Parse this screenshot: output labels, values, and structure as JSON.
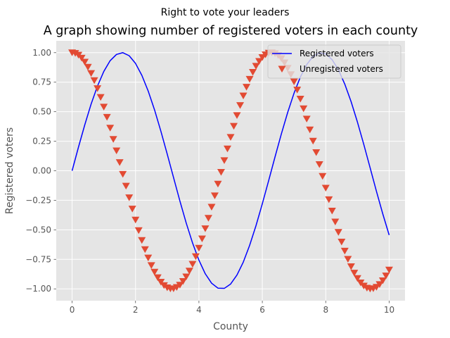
{
  "chart_data": {
    "type": "line",
    "suptitle": "Right to vote your leaders",
    "title": "A graph showing number of registered voters in each county",
    "xlabel": "County",
    "ylabel": "Registered voters",
    "xlim": [
      -0.5,
      10.5
    ],
    "ylim": [
      -1.1,
      1.1
    ],
    "xticks": [
      0,
      2,
      4,
      6,
      8,
      10
    ],
    "xtick_labels": [
      "0",
      "2",
      "4",
      "6",
      "8",
      "10"
    ],
    "yticks": [
      -1.0,
      -0.75,
      -0.5,
      -0.25,
      0.0,
      0.25,
      0.5,
      0.75,
      1.0
    ],
    "ytick_labels": [
      "−1.00",
      "−0.75",
      "−0.50",
      "−0.25",
      "0.00",
      "0.25",
      "0.50",
      "0.75",
      "1.00"
    ],
    "grid": true,
    "legend_position": "top-right",
    "series": [
      {
        "name": "Registered voters",
        "kind": "line",
        "color": "#0000ff",
        "x": [
          0.0,
          0.2,
          0.4,
          0.6,
          0.8,
          1.0,
          1.2,
          1.4,
          1.6,
          1.8,
          2.0,
          2.2,
          2.4,
          2.6,
          2.8,
          3.0,
          3.2,
          3.4,
          3.6,
          3.8,
          4.0,
          4.2,
          4.4,
          4.6,
          4.8,
          5.0,
          5.2,
          5.4,
          5.6,
          5.8,
          6.0,
          6.2,
          6.4,
          6.6,
          6.8,
          7.0,
          7.2,
          7.4,
          7.6,
          7.8,
          8.0,
          8.2,
          8.4,
          8.6,
          8.8,
          9.0,
          9.2,
          9.4,
          9.6,
          9.8,
          10.0
        ],
        "y": [
          0.0,
          0.199,
          0.389,
          0.565,
          0.717,
          0.841,
          0.932,
          0.985,
          1.0,
          0.974,
          0.909,
          0.808,
          0.675,
          0.516,
          0.335,
          0.141,
          -0.058,
          -0.256,
          -0.443,
          -0.612,
          -0.757,
          -0.872,
          -0.952,
          -0.994,
          -0.996,
          -0.959,
          -0.883,
          -0.773,
          -0.631,
          -0.465,
          -0.279,
          -0.083,
          0.117,
          0.312,
          0.494,
          0.657,
          0.794,
          0.899,
          0.968,
          0.999,
          0.989,
          0.941,
          0.855,
          0.734,
          0.585,
          0.412,
          0.223,
          0.025,
          -0.175,
          -0.366,
          -0.544
        ]
      },
      {
        "name": "Unregistered voters",
        "kind": "scatter",
        "marker": "triangle-down",
        "color": "#e24a33",
        "x": [
          0.0,
          0.1,
          0.2,
          0.3,
          0.4,
          0.5,
          0.6,
          0.7,
          0.8,
          0.9,
          1.0,
          1.1,
          1.2,
          1.3,
          1.4,
          1.5,
          1.6,
          1.7,
          1.8,
          1.9,
          2.0,
          2.1,
          2.2,
          2.3,
          2.4,
          2.5,
          2.6,
          2.7,
          2.8,
          2.9,
          3.0,
          3.1,
          3.2,
          3.3,
          3.4,
          3.5,
          3.6,
          3.7,
          3.8,
          3.9,
          4.0,
          4.1,
          4.2,
          4.3,
          4.4,
          4.5,
          4.6,
          4.7,
          4.8,
          4.9,
          5.0,
          5.1,
          5.2,
          5.3,
          5.4,
          5.5,
          5.6,
          5.7,
          5.8,
          5.9,
          6.0,
          6.1,
          6.2,
          6.3,
          6.4,
          6.5,
          6.6,
          6.7,
          6.8,
          6.9,
          7.0,
          7.1,
          7.2,
          7.3,
          7.4,
          7.5,
          7.6,
          7.7,
          7.8,
          7.9,
          8.0,
          8.1,
          8.2,
          8.3,
          8.4,
          8.5,
          8.6,
          8.7,
          8.8,
          8.9,
          9.0,
          9.1,
          9.2,
          9.3,
          9.4,
          9.5,
          9.6,
          9.7,
          9.8,
          9.9,
          10.0
        ],
        "y": [
          1.0,
          0.995,
          0.98,
          0.955,
          0.921,
          0.878,
          0.825,
          0.765,
          0.697,
          0.622,
          0.54,
          0.454,
          0.362,
          0.267,
          0.17,
          0.071,
          -0.029,
          -0.129,
          -0.227,
          -0.323,
          -0.416,
          -0.505,
          -0.589,
          -0.666,
          -0.737,
          -0.801,
          -0.857,
          -0.904,
          -0.942,
          -0.971,
          -0.99,
          -0.999,
          -0.998,
          -0.987,
          -0.967,
          -0.936,
          -0.897,
          -0.848,
          -0.791,
          -0.726,
          -0.654,
          -0.575,
          -0.49,
          -0.401,
          -0.307,
          -0.211,
          -0.112,
          -0.012,
          0.087,
          0.186,
          0.284,
          0.378,
          0.469,
          0.554,
          0.635,
          0.709,
          0.776,
          0.835,
          0.886,
          0.927,
          0.96,
          0.983,
          0.997,
          1.0,
          0.993,
          0.977,
          0.951,
          0.915,
          0.869,
          0.815,
          0.754,
          0.685,
          0.608,
          0.526,
          0.439,
          0.347,
          0.252,
          0.155,
          0.054,
          -0.046,
          -0.146,
          -0.244,
          -0.34,
          -0.432,
          -0.52,
          -0.602,
          -0.679,
          -0.748,
          -0.811,
          -0.865,
          -0.911,
          -0.948,
          -0.975,
          -0.993,
          -1.0,
          -0.997,
          -0.985,
          -0.962,
          -0.93,
          -0.889,
          -0.839
        ]
      }
    ]
  }
}
